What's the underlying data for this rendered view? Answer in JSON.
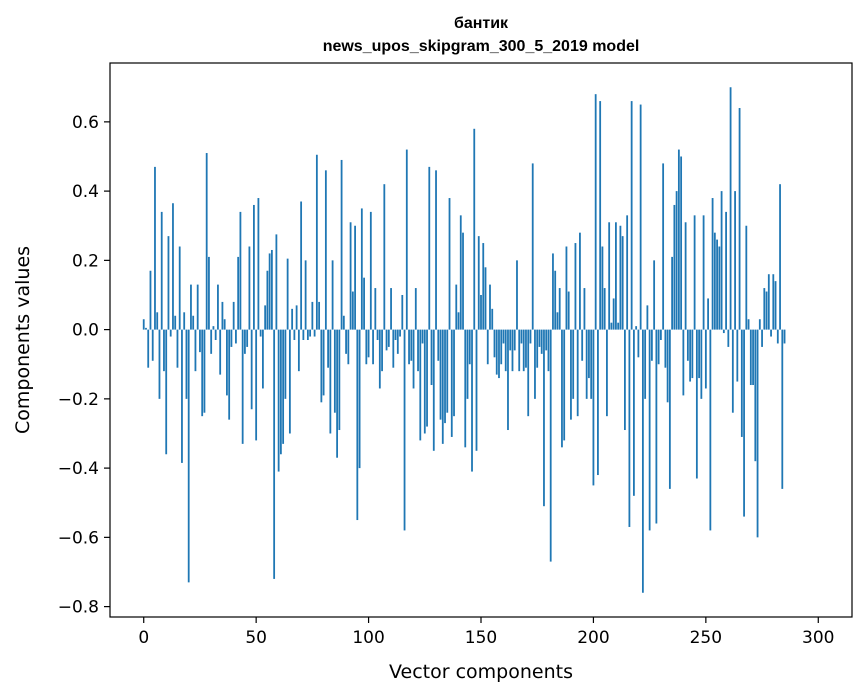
{
  "chart_data": {
    "type": "bar",
    "title": "бантик",
    "subtitle": "news_upos_skipgram_300_5_2019 model",
    "xlabel": "Vector components",
    "ylabel": "Components values",
    "xlim": [
      -15,
      315
    ],
    "ylim": [
      -0.83,
      0.77
    ],
    "x_ticks": [
      0,
      50,
      100,
      150,
      200,
      250,
      300
    ],
    "x_tick_labels": [
      "0",
      "50",
      "100",
      "150",
      "200",
      "250",
      "300"
    ],
    "y_ticks": [
      -0.8,
      -0.6,
      -0.4,
      -0.2,
      0.0,
      0.2,
      0.4,
      0.6
    ],
    "y_tick_labels": [
      "−0.8",
      "−0.6",
      "−0.4",
      "−0.2",
      "0.0",
      "0.2",
      "0.4",
      "0.6"
    ],
    "bar_color": "#1f77b4",
    "grid": false,
    "values": [
      0.03,
      0.005,
      -0.11,
      0.17,
      -0.09,
      0.47,
      0.05,
      -0.2,
      0.34,
      -0.12,
      -0.36,
      0.27,
      -0.02,
      0.365,
      0.04,
      -0.11,
      0.24,
      -0.385,
      0.05,
      -0.2,
      -0.73,
      0.13,
      0.04,
      -0.12,
      0.13,
      -0.065,
      -0.25,
      -0.24,
      0.51,
      0.21,
      -0.07,
      0.01,
      -0.03,
      0.13,
      -0.13,
      0.08,
      0.03,
      -0.19,
      -0.26,
      -0.05,
      0.08,
      -0.04,
      0.21,
      0.34,
      -0.33,
      -0.07,
      -0.05,
      0.24,
      -0.23,
      0.36,
      -0.32,
      0.38,
      -0.02,
      -0.17,
      0.07,
      0.17,
      0.22,
      0.23,
      -0.72,
      0.275,
      -0.41,
      -0.36,
      -0.33,
      -0.2,
      0.205,
      -0.3,
      0.06,
      -0.03,
      0.07,
      -0.12,
      0.37,
      -0.03,
      0.2,
      -0.03,
      -0.02,
      0.08,
      -0.02,
      0.505,
      0.08,
      -0.21,
      -0.19,
      0.46,
      -0.11,
      -0.3,
      0.2,
      -0.24,
      -0.37,
      -0.29,
      0.49,
      0.04,
      -0.07,
      -0.1,
      0.31,
      0.11,
      0.3,
      -0.55,
      -0.4,
      0.35,
      0.15,
      -0.1,
      -0.08,
      0.34,
      -0.1,
      0.12,
      -0.03,
      -0.17,
      -0.12,
      0.42,
      -0.06,
      -0.05,
      0.12,
      -0.11,
      -0.03,
      -0.07,
      -0.02,
      0.1,
      -0.58,
      0.52,
      -0.1,
      -0.09,
      -0.17,
      0.12,
      -0.12,
      -0.32,
      -0.04,
      -0.3,
      -0.28,
      0.47,
      -0.16,
      -0.35,
      0.46,
      -0.09,
      -0.26,
      -0.33,
      -0.27,
      -0.24,
      0.38,
      -0.31,
      -0.25,
      0.13,
      0.05,
      0.33,
      0.28,
      -0.34,
      -0.2,
      -0.1,
      -0.41,
      0.58,
      -0.35,
      0.27,
      0.1,
      0.25,
      0.18,
      -0.1,
      0.13,
      0.06,
      -0.08,
      -0.13,
      -0.14,
      -0.1,
      -0.04,
      -0.12,
      -0.29,
      -0.06,
      -0.12,
      -0.06,
      0.2,
      -0.12,
      -0.04,
      -0.12,
      -0.11,
      -0.25,
      -0.04,
      0.48,
      -0.2,
      -0.11,
      -0.05,
      -0.07,
      -0.51,
      -0.06,
      -0.12,
      -0.67,
      0.22,
      0.17,
      0.05,
      0.12,
      -0.34,
      -0.32,
      0.24,
      0.11,
      -0.26,
      -0.2,
      0.25,
      -0.25,
      0.28,
      -0.09,
      0.12,
      -0.2,
      -0.14,
      -0.2,
      -0.45,
      0.68,
      -0.42,
      0.66,
      0.24,
      0.12,
      -0.25,
      0.31,
      0.02,
      0.09,
      0.31,
      0.02,
      0.3,
      0.27,
      -0.29,
      0.33,
      -0.57,
      0.66,
      -0.48,
      0.01,
      -0.08,
      0.65,
      -0.76,
      -0.2,
      0.07,
      -0.58,
      -0.09,
      0.2,
      -0.56,
      -0.1,
      -0.03,
      0.48,
      -0.11,
      -0.21,
      -0.46,
      0.21,
      0.36,
      0.4,
      0.52,
      0.5,
      -0.19,
      0.31,
      -0.09,
      -0.15,
      -0.14,
      0.33,
      -0.43,
      -0.14,
      -0.2,
      0.33,
      -0.17,
      0.09,
      -0.58,
      0.38,
      0.28,
      0.26,
      0.24,
      0.4,
      -0.01,
      0.34,
      -0.05,
      0.7,
      -0.24,
      0.4,
      -0.15,
      0.64,
      -0.31,
      -0.54,
      0.3,
      0.03,
      -0.16,
      -0.16,
      -0.38,
      -0.6,
      0.03,
      -0.05,
      0.12,
      0.11,
      0.16,
      -0.02,
      0.16,
      0.14,
      -0.04,
      0.42,
      -0.46,
      -0.04
    ]
  }
}
